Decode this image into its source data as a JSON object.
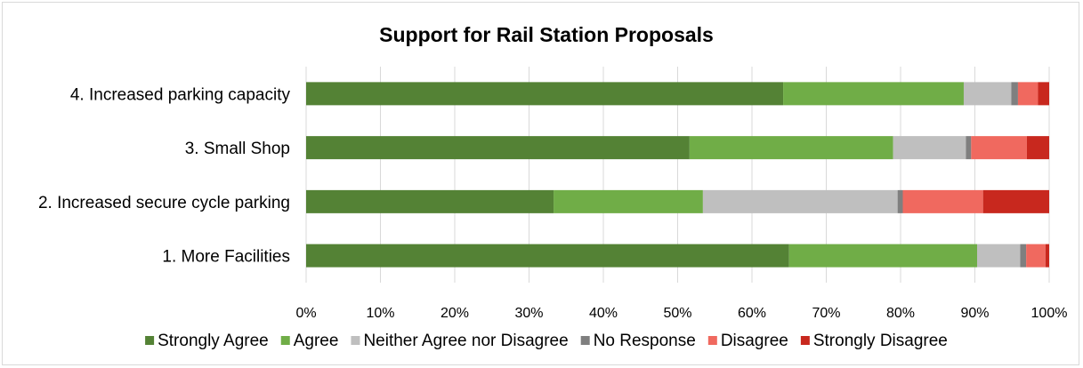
{
  "chart_data": {
    "type": "bar",
    "orientation": "horizontal",
    "stacked": true,
    "title": "Support for Rail Station Proposals",
    "categories": [
      "1. More Facilities",
      "2. Increased secure cycle parking",
      "3. Small Shop",
      "4. Increased parking capacity"
    ],
    "series": [
      {
        "name": "Strongly Agree",
        "color": "#548235",
        "values": [
          65.0,
          33.3,
          51.6,
          64.2
        ]
      },
      {
        "name": "Agree",
        "color": "#70ad47",
        "values": [
          25.3,
          20.1,
          27.4,
          24.3
        ]
      },
      {
        "name": "Neither Agree nor Disagree",
        "color": "#bfbfbf",
        "values": [
          5.8,
          26.2,
          9.8,
          6.4
        ]
      },
      {
        "name": "No Response",
        "color": "#7f7f7f",
        "values": [
          0.8,
          0.7,
          0.7,
          0.9
        ]
      },
      {
        "name": "Disagree",
        "color": "#f0695f",
        "values": [
          2.6,
          10.8,
          7.5,
          2.7
        ]
      },
      {
        "name": "Strongly Disagree",
        "color": "#c8281e",
        "values": [
          0.5,
          8.9,
          3.0,
          1.5
        ]
      }
    ],
    "x_ticks": [
      "0%",
      "10%",
      "20%",
      "30%",
      "40%",
      "50%",
      "60%",
      "70%",
      "80%",
      "90%",
      "100%"
    ],
    "xlim": [
      0,
      100
    ],
    "grid": true,
    "legend_position": "bottom"
  }
}
